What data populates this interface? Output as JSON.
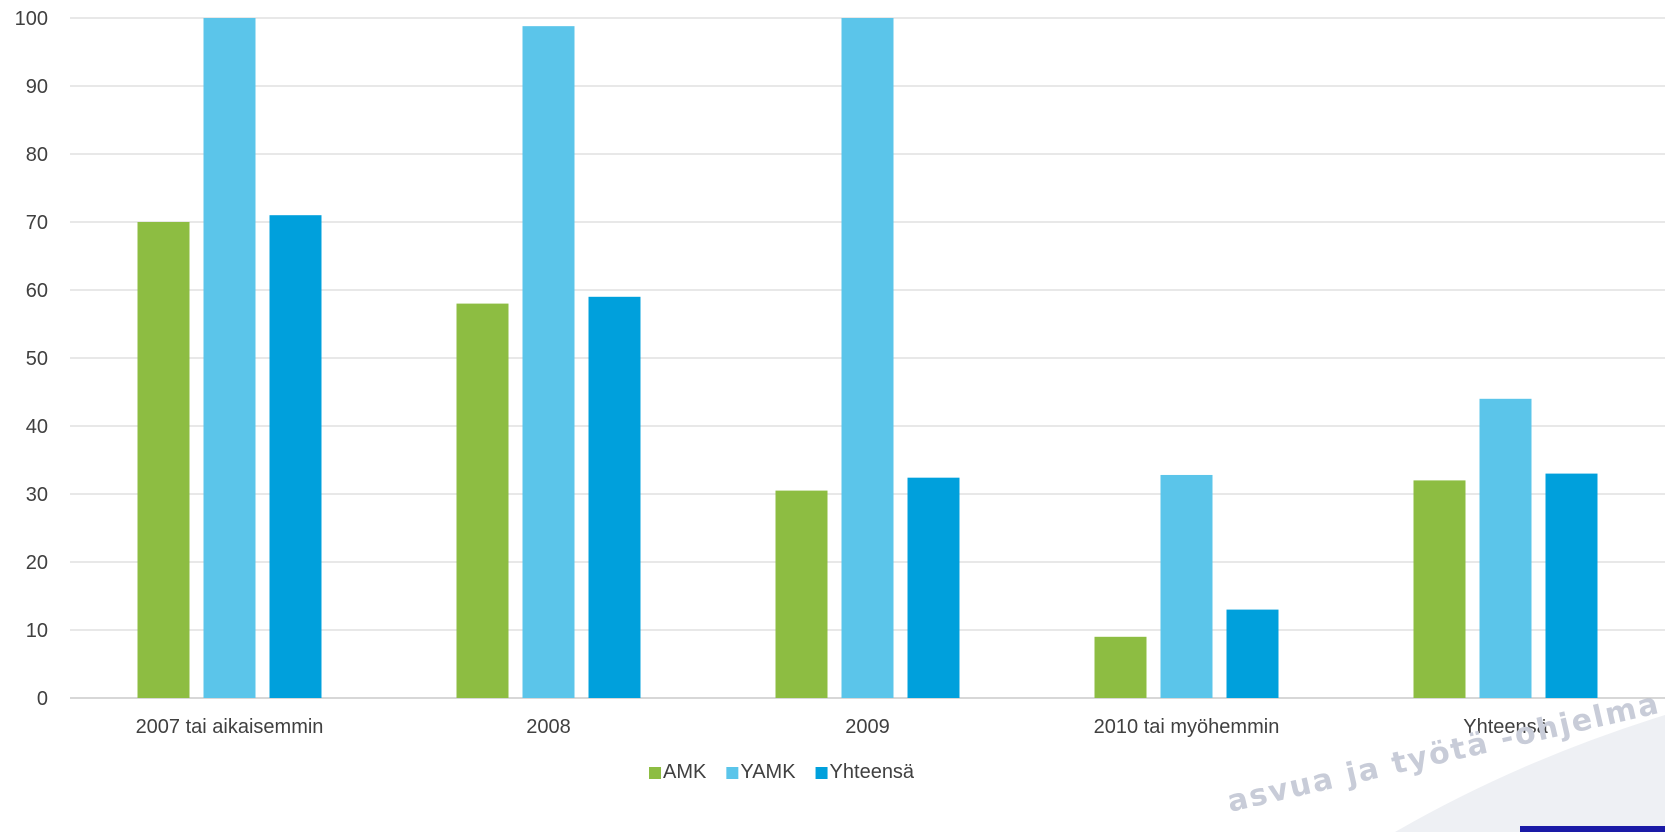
{
  "chart_data": {
    "type": "bar",
    "categories": [
      "2007 tai aikaisemmin",
      "2008",
      "2009",
      "2010 tai myöhemmin",
      "Yhteensä"
    ],
    "series": [
      {
        "name": "AMK",
        "color": "#8dbd42",
        "values": [
          70,
          58,
          30.5,
          9,
          32
        ]
      },
      {
        "name": "YAMK",
        "color": "#5bc5ea",
        "values": [
          100,
          98.8,
          100,
          32.8,
          44
        ]
      },
      {
        "name": "Yhteensä",
        "color": "#00a0dc",
        "values": [
          71,
          59,
          32.4,
          13,
          33
        ]
      }
    ],
    "ylim": [
      0,
      100
    ],
    "yticks": [
      "0",
      "10",
      "20",
      "30",
      "40",
      "50",
      "60",
      "70",
      "80",
      "90",
      "100"
    ],
    "grid": true,
    "legend": "bottom-center"
  },
  "watermark": "asvua ja työtä -ohjelma",
  "colors": {
    "gridline": "#d9d9d9",
    "axis": "#bfbfbf",
    "text": "#404040",
    "corner_accent": "#1a1aa6"
  }
}
